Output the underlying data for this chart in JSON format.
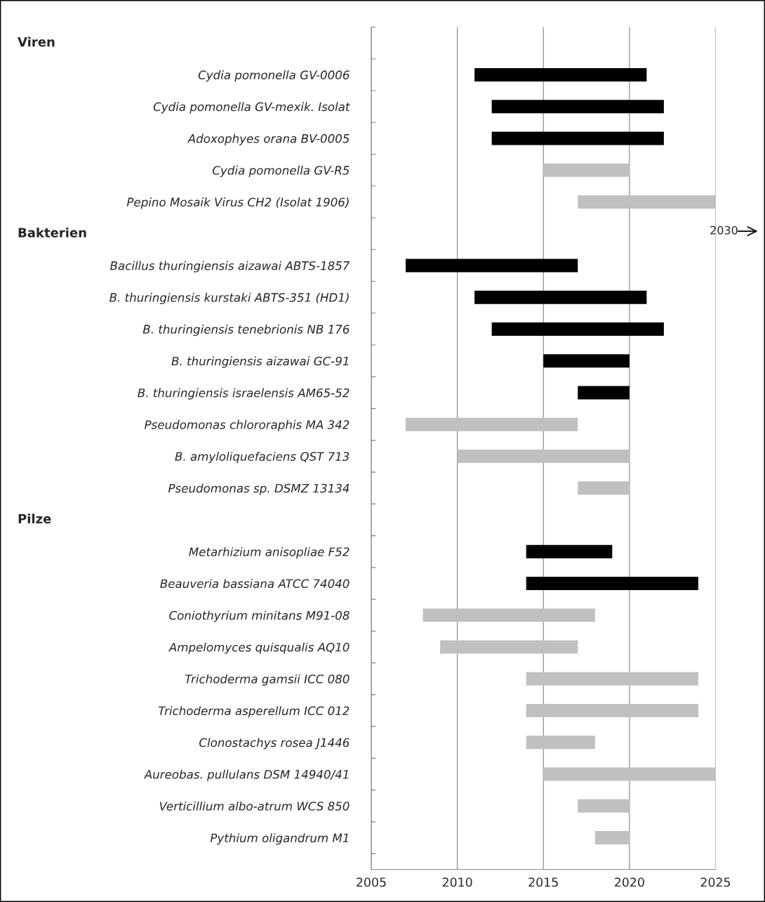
{
  "chart_data": {
    "type": "bar",
    "orientation": "horizontal",
    "categories": [
      null,
      "Cydia pomonella GV-0006",
      "Cydia pomonella GV-mexik. Isolat",
      "Adoxophyes orana BV-0005",
      "Cydia pomonella GV-R5",
      "Pepino Mosaik Virus CH2 (Isolat 1906)",
      null,
      "Bacillus thuringiensis aizawai ABTS-1857",
      "B. thuringiensis kurstaki ABTS-351 (HD1)",
      "B. thuringiensis tenebrionis NB 176",
      "B. thuringiensis aizawai GC-91",
      "B. thuringiensis israelensis AM65-52",
      "Pseudomonas chlororaphis MA 342",
      "B. amyloliquefaciens QST 713",
      "Pseudomonas sp. DSMZ 13134",
      null,
      "Metarhizium anisopliae F52",
      "Beauveria bassiana ATCC 74040",
      "Coniothyrium minitans M91-08",
      "Ampelomyces quisqualis AQ10",
      "Trichoderma gamsii ICC 080",
      "Trichoderma asperellum ICC 012",
      "Clonostachys rosea J1446",
      "Aureobas. pullulans DSM 14940/41",
      "Verticillium albo-atrum WCS 850",
      "Pythium oligandrum M1"
    ],
    "base": [
      null,
      2011,
      2012,
      2012,
      2015,
      2017,
      null,
      2007,
      2011,
      2012,
      2015,
      2017,
      2007,
      2010,
      2017,
      null,
      2014,
      2014,
      2008,
      2009,
      2014,
      2014,
      2014,
      2015,
      2017,
      2018
    ],
    "values": [
      null,
      10,
      10,
      10,
      5,
      8,
      null,
      10,
      10,
      10,
      5,
      3,
      10,
      10,
      3,
      null,
      5,
      10,
      10,
      8,
      10,
      10,
      4,
      10,
      3,
      2
    ],
    "colors": [
      "#000000",
      "#000000",
      "#000000",
      "#000000",
      "#c0c0c0",
      "#c0c0c0",
      "#000000",
      "#000000",
      "#000000",
      "#000000",
      "#000000",
      "#000000",
      "#c0c0c0",
      "#c0c0c0",
      "#c0c0c0",
      "#000000",
      "#000000",
      "#000000",
      "#c0c0c0",
      "#c0c0c0",
      "#c0c0c0",
      "#c0c0c0",
      "#c0c0c0",
      "#c0c0c0",
      "#c0c0c0",
      "#c0c0c0"
    ],
    "xlim": [
      2005,
      2025
    ],
    "xticks": [
      2005,
      2010,
      2015,
      2020,
      2025
    ],
    "grid": "x",
    "annotations": [
      "Viren",
      "Bakterien",
      "Pilze",
      {
        "text": "2030",
        "x": 2025,
        "y": "Pepino Mosaik Virus CH2 (Isolat 1906)"
      }
    ]
  }
}
